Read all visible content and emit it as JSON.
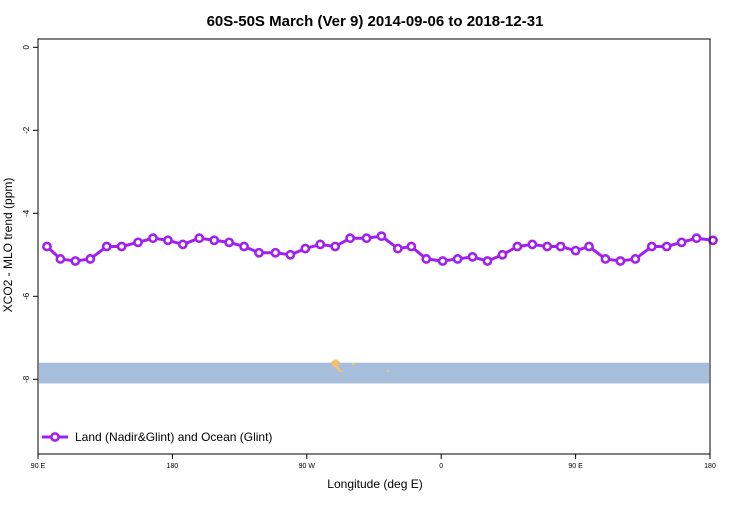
{
  "chart_data": {
    "type": "line",
    "title": "60S-50S March (Ver 9)   2014-09-06 to 2018-12-31",
    "xlabel": "Longitude (deg E)",
    "ylabel": "XCO2 - MLO trend (ppm)",
    "x_tick_labels": [
      "90 E",
      "180",
      "90 W",
      "0",
      "90 E",
      "180"
    ],
    "x_tick_values": [
      90,
      180,
      270,
      360,
      450,
      540
    ],
    "xlim": [
      90,
      540
    ],
    "y_tick_labels": [
      "0",
      "-2",
      "-4",
      "-6",
      "-8"
    ],
    "y_tick_values": [
      0,
      -2,
      -4,
      -6,
      -8
    ],
    "ylim": [
      -9.8,
      0.2
    ],
    "grid": false,
    "legend_position": "bottom-left",
    "series": [
      {
        "name": "Land (Nadir&Glint) and Ocean (Glint)",
        "color": "#a020f0",
        "x": [
          96,
          105,
          115,
          125,
          136,
          146,
          157,
          167,
          177,
          187,
          198,
          208,
          218,
          228,
          238,
          249,
          259,
          269,
          279,
          289,
          299,
          310,
          320,
          331,
          340,
          350,
          361,
          371,
          381,
          391,
          401,
          411,
          421,
          431,
          440,
          450,
          459,
          470,
          480,
          490,
          501,
          511,
          521,
          531,
          542
        ],
        "y": [
          -4.8,
          -5.1,
          -5.15,
          -5.1,
          -4.8,
          -4.8,
          -4.7,
          -4.6,
          -4.65,
          -4.75,
          -4.6,
          -4.65,
          -4.7,
          -4.8,
          -4.95,
          -4.95,
          -5.0,
          -4.85,
          -4.75,
          -4.8,
          -4.6,
          -4.6,
          -4.55,
          -4.85,
          -4.8,
          -5.1,
          -5.15,
          -5.1,
          -5.05,
          -5.15,
          -5.0,
          -4.8,
          -4.75,
          -4.8,
          -4.8,
          -4.9,
          -4.8,
          -5.1,
          -5.15,
          -5.1,
          -4.8,
          -4.8,
          -4.7,
          -4.6,
          -4.65
        ]
      }
    ],
    "background_band": {
      "y_range": [
        -8.1,
        -7.6
      ],
      "color": "#a6bddb",
      "land_color": "#f5c06a"
    }
  }
}
